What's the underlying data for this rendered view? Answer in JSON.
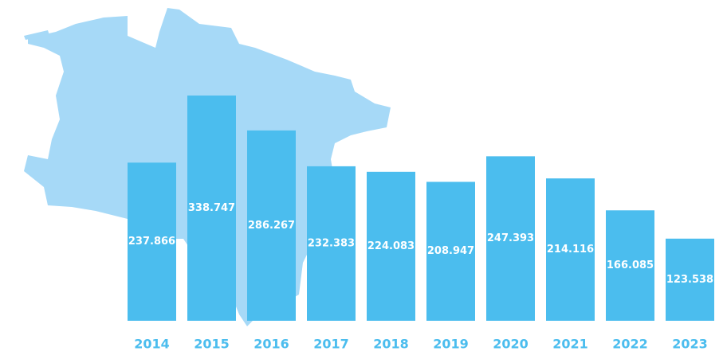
{
  "chart_data": {
    "type": "bar",
    "categories": [
      "2014",
      "2015",
      "2016",
      "2017",
      "2018",
      "2019",
      "2020",
      "2021",
      "2022",
      "2023"
    ],
    "values": [
      237866,
      338747,
      286267,
      232383,
      224083,
      208947,
      247393,
      214116,
      166085,
      123538
    ],
    "value_labels": [
      "237.866",
      "338.747",
      "286.267",
      "232.383",
      "224.083",
      "208.947",
      "247.393",
      "214.116",
      "166.085",
      "123.538"
    ],
    "color": "#4bbdee",
    "ylim": [
      0,
      340000
    ]
  }
}
